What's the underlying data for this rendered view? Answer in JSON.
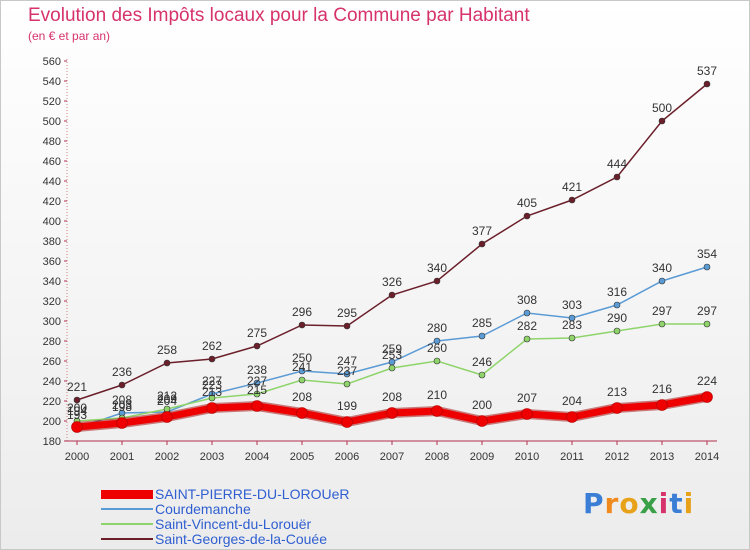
{
  "title": "Evolution des Impôts locaux pour la Commune par Habitant",
  "subtitle": "(en € et par an)",
  "logo": {
    "text": "Proxiti",
    "letters": [
      "P",
      "r",
      "o",
      "x",
      "i",
      "t",
      "i"
    ],
    "colors": [
      "#3a7fd5",
      "#f08a1c",
      "#e8a21a",
      "#39a047",
      "#d6336c",
      "#3a7fd5",
      "#e8a21a"
    ]
  },
  "chart_data": {
    "type": "line",
    "title": "Evolution des Impôts locaux pour la Commune par Habitant",
    "subtitle": "(en € et par an)",
    "x": [
      "2000",
      "2001",
      "2002",
      "2003",
      "2004",
      "2005",
      "2006",
      "2007",
      "2008",
      "2009",
      "2010",
      "2011",
      "2012",
      "2013",
      "2014"
    ],
    "ylim": [
      180,
      560
    ],
    "yticks": [
      180,
      200,
      220,
      240,
      260,
      280,
      300,
      320,
      340,
      360,
      380,
      400,
      420,
      440,
      460,
      480,
      500,
      520,
      540,
      560
    ],
    "grid": false,
    "legend_position": "bottom-left",
    "series": [
      {
        "name": "SAINT-PIERRE-DU-LOROUeR",
        "color": "#ee0000",
        "bold": true,
        "values": [
          194,
          198,
          204,
          213,
          215,
          208,
          199,
          208,
          210,
          200,
          207,
          204,
          213,
          216,
          224
        ]
      },
      {
        "name": "Courdemanche",
        "color": "#5b9bd5",
        "bold": false,
        "values": [
          193,
          208,
          209,
          227,
          238,
          250,
          247,
          259,
          280,
          285,
          308,
          303,
          316,
          340,
          354
        ]
      },
      {
        "name": "Saint-Vincent-du-Lorouër",
        "color": "#8ed46a",
        "bold": false,
        "values": [
          200,
          203,
          212,
          223,
          227,
          241,
          237,
          253,
          260,
          246,
          282,
          283,
          290,
          297,
          297
        ]
      },
      {
        "name": "Saint-Georges-de-la-Couée",
        "color": "#6b1f2a",
        "bold": false,
        "values": [
          221,
          236,
          258,
          262,
          275,
          296,
          295,
          326,
          340,
          377,
          405,
          421,
          444,
          500,
          537
        ]
      }
    ]
  }
}
